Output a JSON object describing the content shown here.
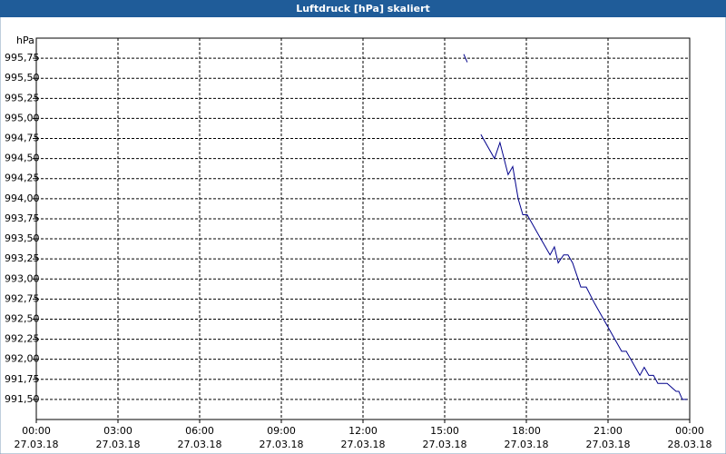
{
  "chart_data": {
    "type": "line",
    "title": "Luftdruck [hPa] skaliert",
    "y_label": "hPa",
    "x": [
      15.7,
      15.83,
      null,
      16.33,
      16.83,
      17.03,
      17.33,
      17.5,
      17.7,
      17.87,
      18.03,
      18.53,
      18.87,
      19.03,
      19.17,
      19.37,
      19.53,
      19.7,
      20.0,
      20.2,
      20.5,
      21.5,
      21.67,
      22.17,
      22.33,
      22.5,
      22.67,
      22.83,
      23.17,
      23.5,
      23.6,
      23.73,
      23.9
    ],
    "series": [
      {
        "name": "Luftdruck",
        "color": "#00008b",
        "values": [
          995.8,
          995.7,
          null,
          994.8,
          994.5,
          994.7,
          994.3,
          994.4,
          994.0,
          993.8,
          993.8,
          993.5,
          993.3,
          993.4,
          993.2,
          993.3,
          993.3,
          993.2,
          992.9,
          992.9,
          992.7,
          992.1,
          992.1,
          991.8,
          991.9,
          991.8,
          991.8,
          991.7,
          991.7,
          991.6,
          991.6,
          991.5,
          991.5
        ]
      }
    ],
    "xlim": [
      0,
      24
    ],
    "xticks": [
      {
        "value": 0,
        "label": "00:00"
      },
      {
        "value": 3,
        "label": "03:00"
      },
      {
        "value": 6,
        "label": "06:00"
      },
      {
        "value": 9,
        "label": "09:00"
      },
      {
        "value": 12,
        "label": "12:00"
      },
      {
        "value": 15,
        "label": "15:00"
      },
      {
        "value": 18,
        "label": "18:00"
      },
      {
        "value": 21,
        "label": "21:00"
      },
      {
        "value": 24,
        "label": "00:00"
      }
    ],
    "xtick_dates": [
      "27.03.18",
      "27.03.18",
      "27.03.18",
      "27.03.18",
      "27.03.18",
      "27.03.18",
      "27.03.18",
      "27.03.18",
      "28.03.18"
    ],
    "ylim": [
      991.25,
      996.0
    ],
    "yticks": [
      {
        "value": 991.5,
        "label": "991,50"
      },
      {
        "value": 991.75,
        "label": "991,75"
      },
      {
        "value": 992.0,
        "label": "992,00"
      },
      {
        "value": 992.25,
        "label": "992,25"
      },
      {
        "value": 992.5,
        "label": "992,50"
      },
      {
        "value": 992.75,
        "label": "992,75"
      },
      {
        "value": 993.0,
        "label": "993,00"
      },
      {
        "value": 993.25,
        "label": "993,25"
      },
      {
        "value": 993.5,
        "label": "993,50"
      },
      {
        "value": 993.75,
        "label": "993,75"
      },
      {
        "value": 994.0,
        "label": "994,00"
      },
      {
        "value": 994.25,
        "label": "994,25"
      },
      {
        "value": 994.5,
        "label": "994,50"
      },
      {
        "value": 994.75,
        "label": "994,75"
      },
      {
        "value": 995.0,
        "label": "995,00"
      },
      {
        "value": 995.25,
        "label": "995,25"
      },
      {
        "value": 995.5,
        "label": "995,50"
      },
      {
        "value": 995.75,
        "label": "995,75"
      }
    ],
    "grid": true
  }
}
